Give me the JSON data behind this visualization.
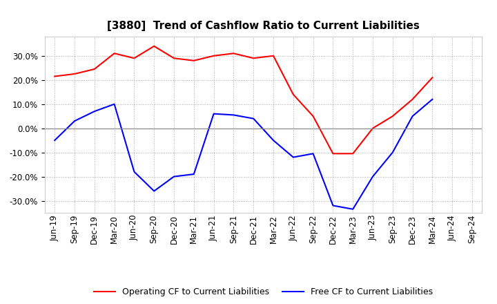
{
  "title": "[3880]  Trend of Cashflow Ratio to Current Liabilities",
  "x_labels": [
    "Jun-19",
    "Sep-19",
    "Dec-19",
    "Mar-20",
    "Jun-20",
    "Sep-20",
    "Dec-20",
    "Mar-21",
    "Jun-21",
    "Sep-21",
    "Dec-21",
    "Mar-22",
    "Jun-22",
    "Sep-22",
    "Dec-22",
    "Mar-23",
    "Jun-23",
    "Sep-23",
    "Dec-23",
    "Mar-24",
    "Jun-24",
    "Sep-24"
  ],
  "operating_cf": [
    21.5,
    22.5,
    24.5,
    31.0,
    29.0,
    34.0,
    29.0,
    28.0,
    30.0,
    31.0,
    29.0,
    30.0,
    14.0,
    5.0,
    -10.5,
    -10.5,
    0.0,
    5.0,
    12.0,
    21.0,
    null,
    null
  ],
  "free_cf": [
    -5.0,
    3.0,
    7.0,
    10.0,
    -18.0,
    -26.0,
    -20.0,
    -19.0,
    6.0,
    5.5,
    4.0,
    -5.0,
    -12.0,
    -10.5,
    -32.0,
    -33.5,
    -20.0,
    -10.0,
    5.0,
    12.0,
    null,
    null
  ],
  "ylim": [
    -35,
    38
  ],
  "yticks": [
    -30,
    -20,
    -10,
    0,
    10,
    20,
    30
  ],
  "operating_color": "#FF0000",
  "free_color": "#0000FF",
  "background_color": "#FFFFFF",
  "plot_bg_color": "#FFFFFF",
  "grid_color": "#AAAAAA",
  "title_fontsize": 11,
  "legend_fontsize": 9,
  "tick_fontsize": 8.5
}
